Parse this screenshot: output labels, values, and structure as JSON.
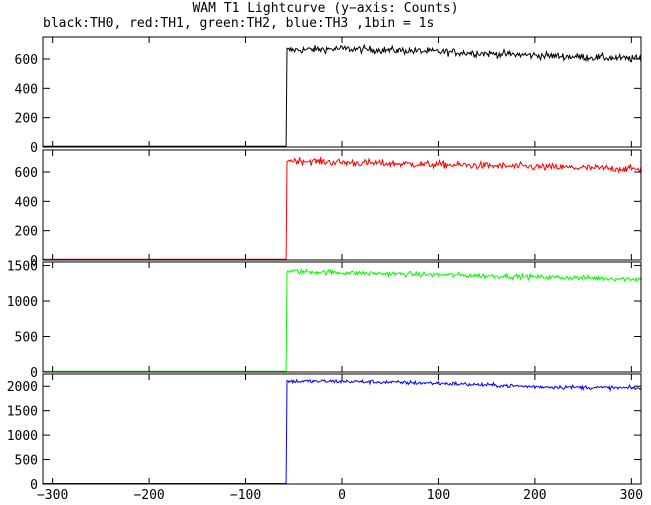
{
  "title": "WAM T1 Lightcurve (y−axis: Counts)",
  "subtitle": "black:TH0, red:TH1, green:TH2, blue:TH3 ,1bin = 1s",
  "chart_data": {
    "type": "line",
    "xlim": [
      -310,
      310
    ],
    "x_ticks": [
      -300,
      -200,
      -100,
      0,
      100,
      200,
      300
    ],
    "x_tick_labels": [
      "−300",
      "−200",
      "−100",
      "0",
      "100",
      "200",
      "300"
    ],
    "bin_seconds": 1,
    "onset_x": -57,
    "grid": false,
    "panels": [
      {
        "channel": "TH0",
        "color": "#000000",
        "ylim": [
          0,
          750
        ],
        "y_ticks": [
          0,
          200,
          400,
          600
        ],
        "y_tick_labels": [
          "0",
          "200",
          "400",
          "600"
        ],
        "baseline": 5,
        "level_points": [
          [
            -57,
            660
          ],
          [
            0,
            670
          ],
          [
            100,
            650
          ],
          [
            200,
            625
          ],
          [
            310,
            600
          ]
        ],
        "noise": 25
      },
      {
        "channel": "TH1",
        "color": "#ff0000",
        "ylim": [
          0,
          750
        ],
        "y_ticks": [
          0,
          200,
          400,
          600
        ],
        "y_tick_labels": [
          "0",
          "200",
          "400",
          "600"
        ],
        "baseline": 5,
        "level_points": [
          [
            -57,
            680
          ],
          [
            0,
            665
          ],
          [
            100,
            650
          ],
          [
            200,
            635
          ],
          [
            310,
            620
          ]
        ],
        "noise": 25
      },
      {
        "channel": "TH2",
        "color": "#00ff00",
        "ylim": [
          0,
          1550
        ],
        "y_ticks": [
          0,
          500,
          1000,
          1500
        ],
        "y_tick_labels": [
          "0",
          "500",
          "1000",
          "1500"
        ],
        "baseline": 10,
        "level_points": [
          [
            -57,
            1420
          ],
          [
            0,
            1400
          ],
          [
            100,
            1370
          ],
          [
            200,
            1340
          ],
          [
            310,
            1310
          ]
        ],
        "noise": 35
      },
      {
        "channel": "TH3",
        "color": "#0000ff",
        "ylim": [
          0,
          2250
        ],
        "y_ticks": [
          0,
          500,
          1000,
          1500,
          2000
        ],
        "y_tick_labels": [
          "0",
          "500",
          "1000",
          "1500",
          "2000"
        ],
        "baseline": 10,
        "level_points": [
          [
            -57,
            2100
          ],
          [
            0,
            2100
          ],
          [
            100,
            2060
          ],
          [
            200,
            1990
          ],
          [
            310,
            1960
          ]
        ],
        "noise": 40
      }
    ]
  }
}
